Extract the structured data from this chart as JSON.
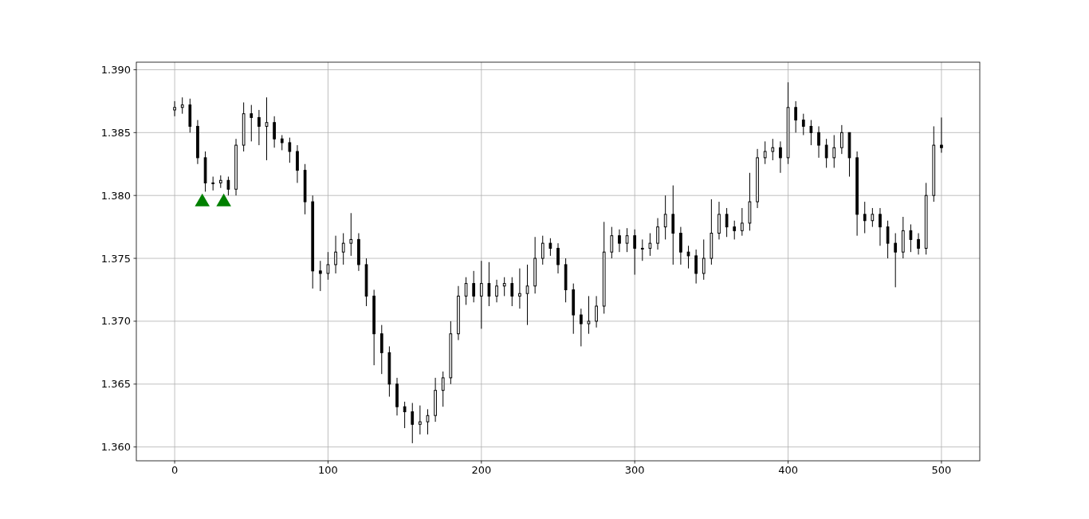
{
  "chart_data": {
    "type": "candlestick",
    "x": [
      0,
      5,
      10,
      15,
      20,
      25,
      30,
      35,
      40,
      45,
      50,
      55,
      60,
      65,
      70,
      75,
      80,
      85,
      90,
      95,
      100,
      105,
      110,
      115,
      120,
      125,
      130,
      135,
      140,
      145,
      150,
      155,
      160,
      165,
      170,
      175,
      180,
      185,
      190,
      195,
      200,
      205,
      210,
      215,
      220,
      225,
      230,
      235,
      240,
      245,
      250,
      255,
      260,
      265,
      270,
      275,
      280,
      285,
      290,
      295,
      300,
      305,
      310,
      315,
      320,
      325,
      330,
      335,
      340,
      345,
      350,
      355,
      360,
      365,
      370,
      375,
      380,
      385,
      390,
      395,
      400,
      405,
      410,
      415,
      420,
      425,
      430,
      435,
      440,
      445,
      450,
      455,
      460,
      465,
      470,
      475,
      480,
      485,
      490,
      495,
      500
    ],
    "ohlc": [
      [
        1.3868,
        1.3875,
        1.3863,
        1.387
      ],
      [
        1.387,
        1.3878,
        1.3865,
        1.3872
      ],
      [
        1.3872,
        1.3877,
        1.385,
        1.3855
      ],
      [
        1.3855,
        1.386,
        1.3825,
        1.383
      ],
      [
        1.383,
        1.3835,
        1.3803,
        1.381
      ],
      [
        1.381,
        1.3815,
        1.3804,
        1.381
      ],
      [
        1.381,
        1.3816,
        1.3806,
        1.3812
      ],
      [
        1.3812,
        1.3815,
        1.38,
        1.3805
      ],
      [
        1.3805,
        1.3845,
        1.38,
        1.384
      ],
      [
        1.384,
        1.3874,
        1.3835,
        1.3865
      ],
      [
        1.3865,
        1.3872,
        1.3843,
        1.3862
      ],
      [
        1.3862,
        1.3868,
        1.384,
        1.3855
      ],
      [
        1.3855,
        1.3878,
        1.3828,
        1.3858
      ],
      [
        1.3858,
        1.3863,
        1.3838,
        1.3845
      ],
      [
        1.3845,
        1.3848,
        1.3836,
        1.3842
      ],
      [
        1.3842,
        1.3846,
        1.3826,
        1.3835
      ],
      [
        1.3835,
        1.384,
        1.381,
        1.382
      ],
      [
        1.382,
        1.3825,
        1.3785,
        1.3795
      ],
      [
        1.3795,
        1.38,
        1.3726,
        1.374
      ],
      [
        1.374,
        1.3748,
        1.3724,
        1.3738
      ],
      [
        1.3738,
        1.3755,
        1.3733,
        1.3745
      ],
      [
        1.3745,
        1.3768,
        1.3738,
        1.3755
      ],
      [
        1.3755,
        1.377,
        1.3745,
        1.3762
      ],
      [
        1.3762,
        1.3786,
        1.3752,
        1.3765
      ],
      [
        1.3765,
        1.377,
        1.374,
        1.3745
      ],
      [
        1.3745,
        1.375,
        1.3712,
        1.372
      ],
      [
        1.372,
        1.3725,
        1.3665,
        1.369
      ],
      [
        1.369,
        1.3697,
        1.3658,
        1.3675
      ],
      [
        1.3675,
        1.368,
        1.364,
        1.365
      ],
      [
        1.365,
        1.3655,
        1.3625,
        1.3632
      ],
      [
        1.3632,
        1.3636,
        1.3615,
        1.3628
      ],
      [
        1.3628,
        1.3635,
        1.3603,
        1.3618
      ],
      [
        1.3618,
        1.3633,
        1.361,
        1.362
      ],
      [
        1.362,
        1.363,
        1.361,
        1.3625
      ],
      [
        1.3625,
        1.3655,
        1.362,
        1.3645
      ],
      [
        1.3645,
        1.366,
        1.3632,
        1.3655
      ],
      [
        1.3655,
        1.37,
        1.365,
        1.369
      ],
      [
        1.369,
        1.3728,
        1.3685,
        1.372
      ],
      [
        1.372,
        1.3735,
        1.3713,
        1.373
      ],
      [
        1.373,
        1.374,
        1.3715,
        1.372
      ],
      [
        1.372,
        1.3748,
        1.3694,
        1.373
      ],
      [
        1.373,
        1.3747,
        1.3712,
        1.372
      ],
      [
        1.372,
        1.3733,
        1.3715,
        1.3728
      ],
      [
        1.3728,
        1.3735,
        1.372,
        1.373
      ],
      [
        1.373,
        1.3735,
        1.3712,
        1.372
      ],
      [
        1.372,
        1.3742,
        1.371,
        1.3722
      ],
      [
        1.3722,
        1.3745,
        1.3697,
        1.3728
      ],
      [
        1.3728,
        1.3767,
        1.3722,
        1.375
      ],
      [
        1.375,
        1.3768,
        1.3745,
        1.3762
      ],
      [
        1.3762,
        1.3766,
        1.3752,
        1.3758
      ],
      [
        1.3758,
        1.3762,
        1.3738,
        1.3745
      ],
      [
        1.3745,
        1.375,
        1.3715,
        1.3725
      ],
      [
        1.3725,
        1.373,
        1.369,
        1.3705
      ],
      [
        1.3705,
        1.371,
        1.368,
        1.3698
      ],
      [
        1.3698,
        1.372,
        1.369,
        1.37
      ],
      [
        1.37,
        1.372,
        1.3695,
        1.3712
      ],
      [
        1.3712,
        1.3779,
        1.3706,
        1.3755
      ],
      [
        1.3755,
        1.3775,
        1.375,
        1.3768
      ],
      [
        1.3768,
        1.3773,
        1.3755,
        1.3762
      ],
      [
        1.3762,
        1.3774,
        1.3755,
        1.3768
      ],
      [
        1.3768,
        1.3773,
        1.3737,
        1.3758
      ],
      [
        1.3758,
        1.3765,
        1.3748,
        1.3758
      ],
      [
        1.3758,
        1.377,
        1.3752,
        1.3762
      ],
      [
        1.3762,
        1.3782,
        1.3757,
        1.3775
      ],
      [
        1.3775,
        1.38,
        1.3765,
        1.3785
      ],
      [
        1.3785,
        1.3808,
        1.3745,
        1.377
      ],
      [
        1.377,
        1.3775,
        1.3745,
        1.3755
      ],
      [
        1.3755,
        1.376,
        1.3742,
        1.3752
      ],
      [
        1.3752,
        1.3757,
        1.373,
        1.3738
      ],
      [
        1.3738,
        1.3765,
        1.3733,
        1.375
      ],
      [
        1.375,
        1.3797,
        1.3745,
        1.377
      ],
      [
        1.377,
        1.3795,
        1.3765,
        1.3785
      ],
      [
        1.3785,
        1.379,
        1.3767,
        1.3775
      ],
      [
        1.3775,
        1.378,
        1.3765,
        1.3772
      ],
      [
        1.3772,
        1.379,
        1.3768,
        1.3778
      ],
      [
        1.3778,
        1.3818,
        1.3772,
        1.3795
      ],
      [
        1.3795,
        1.3837,
        1.379,
        1.383
      ],
      [
        1.383,
        1.3843,
        1.3825,
        1.3835
      ],
      [
        1.3835,
        1.3845,
        1.3828,
        1.3838
      ],
      [
        1.3838,
        1.3843,
        1.3818,
        1.383
      ],
      [
        1.383,
        1.389,
        1.3825,
        1.387
      ],
      [
        1.387,
        1.3875,
        1.385,
        1.386
      ],
      [
        1.386,
        1.3865,
        1.3848,
        1.3855
      ],
      [
        1.3855,
        1.386,
        1.384,
        1.385
      ],
      [
        1.385,
        1.3855,
        1.383,
        1.384
      ],
      [
        1.384,
        1.3845,
        1.3822,
        1.383
      ],
      [
        1.383,
        1.3848,
        1.3822,
        1.3838
      ],
      [
        1.3838,
        1.3856,
        1.3833,
        1.385
      ],
      [
        1.385,
        1.385,
        1.3815,
        1.383
      ],
      [
        1.383,
        1.3835,
        1.3768,
        1.3785
      ],
      [
        1.3785,
        1.3795,
        1.377,
        1.378
      ],
      [
        1.378,
        1.379,
        1.3775,
        1.3785
      ],
      [
        1.3785,
        1.379,
        1.376,
        1.3775
      ],
      [
        1.3775,
        1.378,
        1.375,
        1.3762
      ],
      [
        1.3762,
        1.377,
        1.3727,
        1.3755
      ],
      [
        1.3755,
        1.3783,
        1.375,
        1.3772
      ],
      [
        1.3772,
        1.3777,
        1.3755,
        1.3765
      ],
      [
        1.3765,
        1.377,
        1.3753,
        1.3758
      ],
      [
        1.3758,
        1.381,
        1.3753,
        1.38
      ],
      [
        1.38,
        1.3855,
        1.3795,
        1.384
      ],
      [
        1.384,
        1.3862,
        1.3834,
        1.3838
      ]
    ],
    "series": [
      {
        "type": "scatter",
        "x": [
          18,
          32
        ],
        "values": [
          1.3796,
          1.3796
        ],
        "color": "#008000",
        "marker": "triangle"
      }
    ],
    "xlim": [
      -25,
      525
    ],
    "ylim": [
      1.3589,
      1.3906
    ],
    "xticks": [
      0,
      100,
      200,
      300,
      400,
      500
    ],
    "yticks": [
      {
        "value": 1.36,
        "label": "1.360"
      },
      {
        "value": 1.365,
        "label": "1.365"
      },
      {
        "value": 1.37,
        "label": "1.370"
      },
      {
        "value": 1.375,
        "label": "1.375"
      },
      {
        "value": 1.38,
        "label": "1.380"
      },
      {
        "value": 1.385,
        "label": "1.385"
      },
      {
        "value": 1.39,
        "label": "1.390"
      }
    ],
    "grid": true
  }
}
